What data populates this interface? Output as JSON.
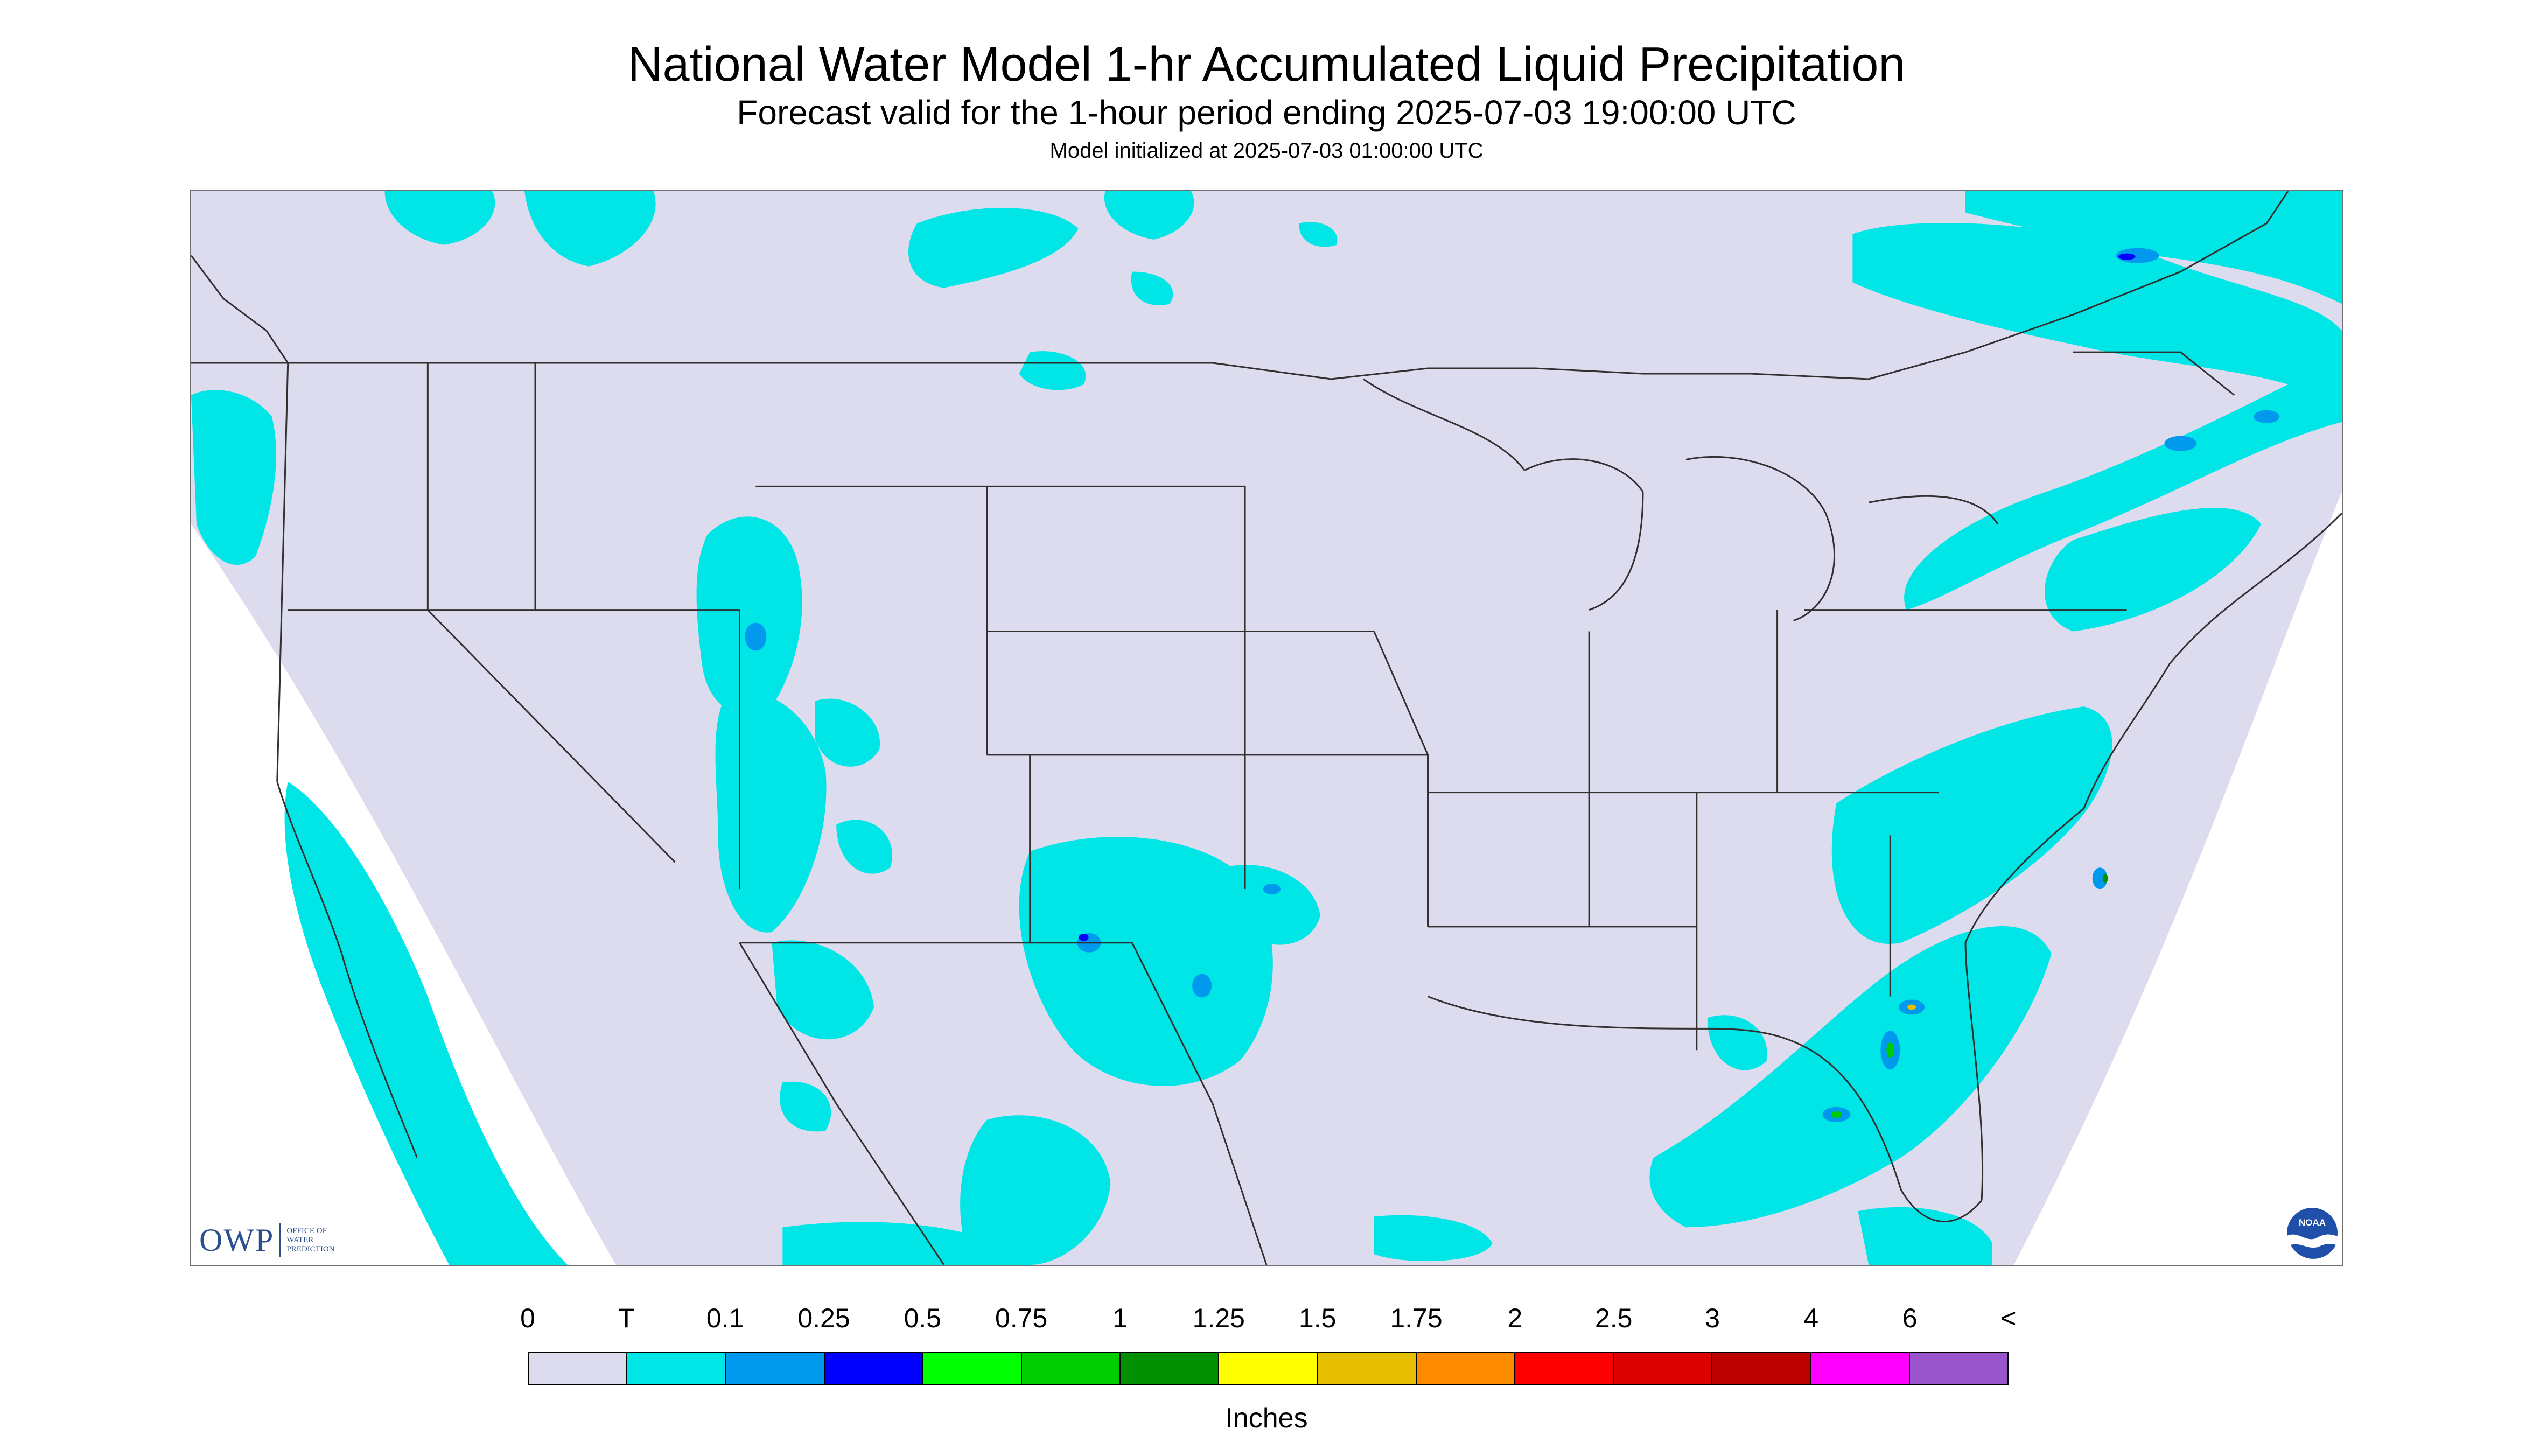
{
  "title": "National Water Model 1-hr Accumulated Liquid Precipitation",
  "subtitle": "Forecast valid for the 1-hour period ending 2025-07-03 19:00:00 UTC",
  "init": "Model initialized at 2025-07-03 01:00:00 UTC",
  "logo_owp": {
    "abbr": "OWP",
    "line1": "OFFICE OF",
    "line2": "WATER",
    "line3": "PREDICTION"
  },
  "logo_noaa": {
    "text": "NOAA"
  },
  "colors": {
    "background_zero": "#dcdcee",
    "trace": "#00e5e5",
    "outside_domain": "#ffffff",
    "state_lines": "#303030"
  },
  "legend": {
    "labels": [
      "0",
      "T",
      "0.1",
      "0.25",
      "0.5",
      "0.75",
      "1",
      "1.25",
      "1.5",
      "1.75",
      "2",
      "2.5",
      "3",
      "4",
      "6",
      "<"
    ],
    "colors": [
      "#dcdcee",
      "#00e5e5",
      "#0099ee",
      "#0000ff",
      "#00ff00",
      "#00cc00",
      "#008f00",
      "#ffff00",
      "#e6bf00",
      "#ff8c00",
      "#ff0000",
      "#dd0000",
      "#bb0000",
      "#ff00ff",
      "#9955cc"
    ],
    "units": "Inches"
  }
}
